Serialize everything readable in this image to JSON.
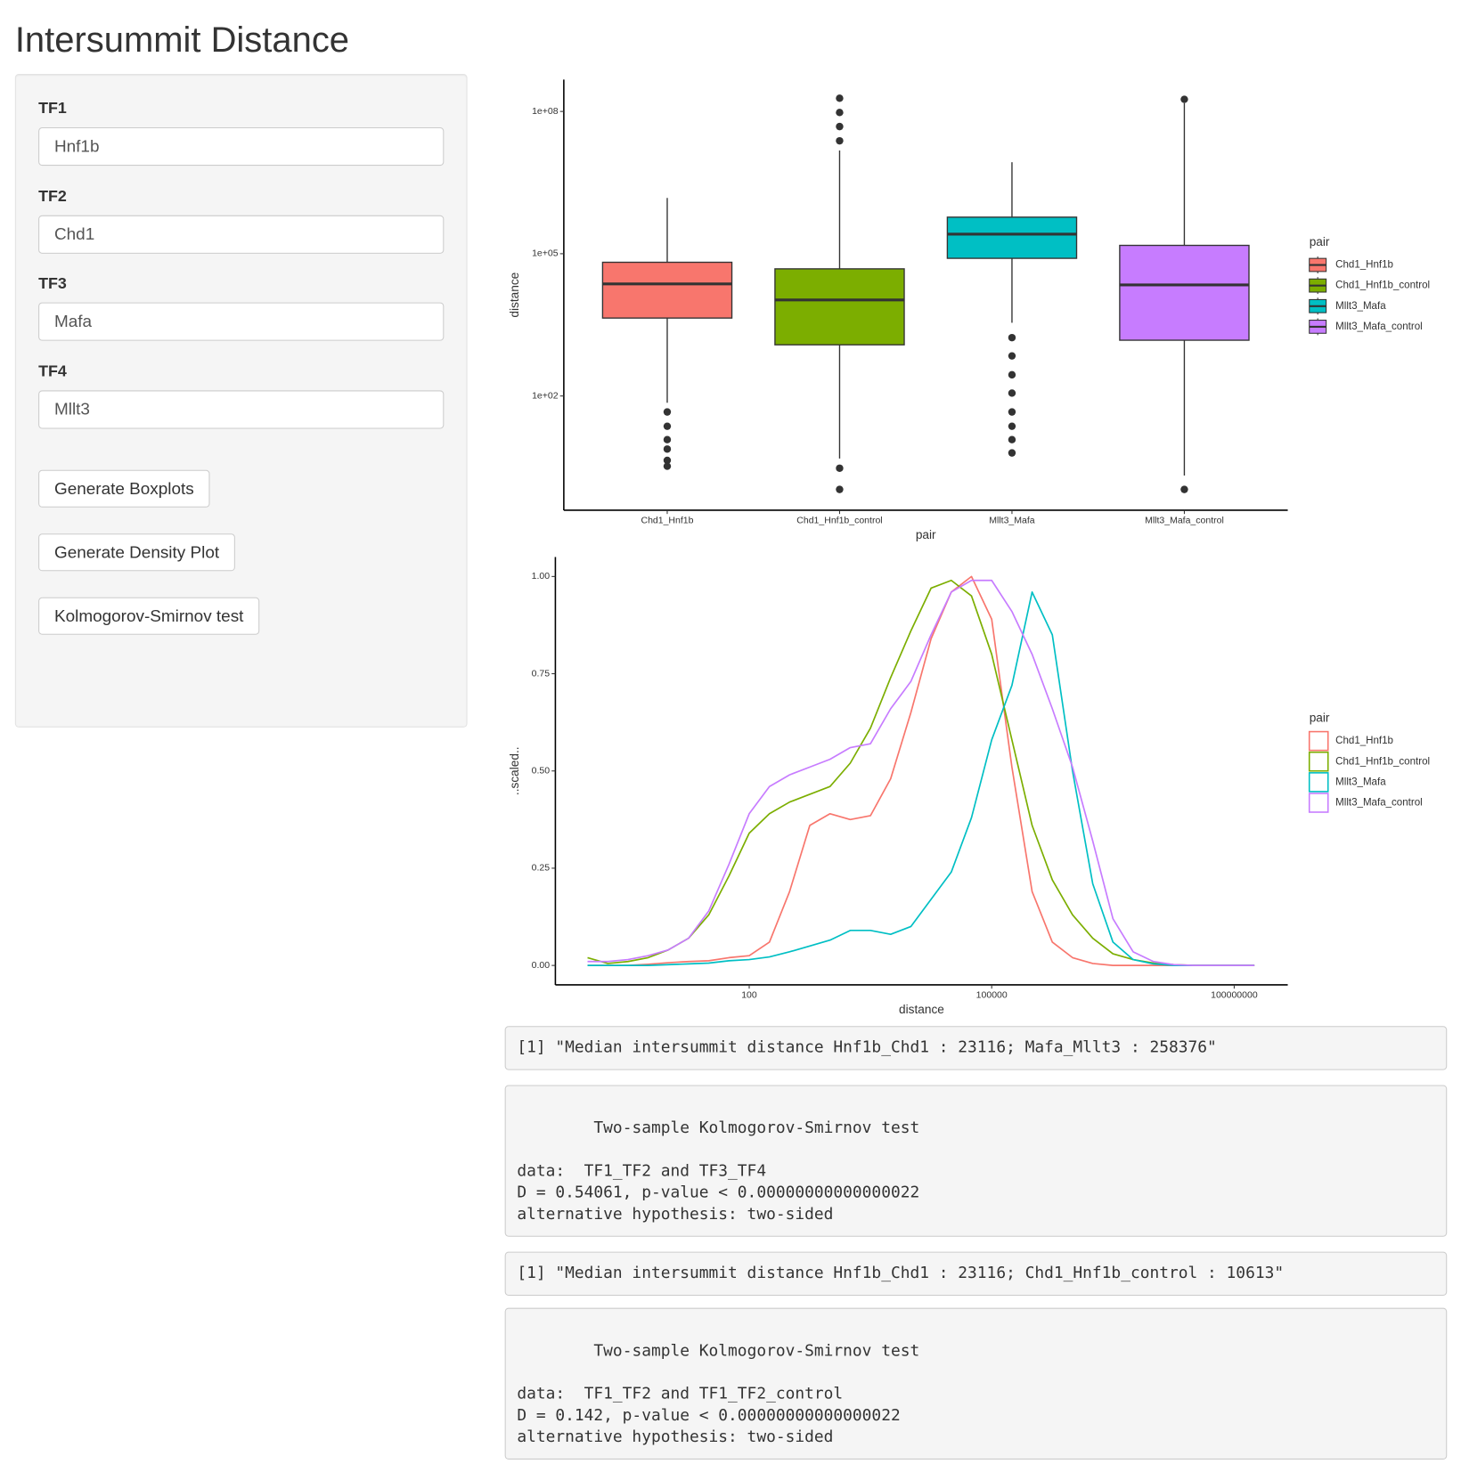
{
  "header": {
    "title": "Intersummit Distance"
  },
  "sidebar": {
    "inputs": [
      {
        "label": "TF1",
        "value": "Hnf1b"
      },
      {
        "label": "TF2",
        "value": "Chd1"
      },
      {
        "label": "TF3",
        "value": "Mafa"
      },
      {
        "label": "TF4",
        "value": "Mllt3"
      }
    ],
    "buttons": [
      "Generate Boxplots",
      "Generate Density Plot",
      "Kolmogorov-Smirnov test"
    ]
  },
  "chart_data": [
    {
      "type": "box",
      "xlabel": "pair",
      "ylabel": "distance",
      "log_y": true,
      "legend_title": "pair",
      "legend": "right",
      "categories": [
        "Chd1_Hnf1b",
        "Chd1_Hnf1b_control",
        "Mllt3_Mafa",
        "Mllt3_Mafa_control"
      ],
      "ylim": [
        0.39,
        470000000
      ],
      "yticks": [
        {
          "value": 100,
          "label": "1e+02"
        },
        {
          "value": 100000,
          "label": "1e+05"
        },
        {
          "value": 100000000,
          "label": "1e+08"
        }
      ],
      "boxes": [
        {
          "name": "Chd1_Hnf1b",
          "color": "#F8766D",
          "whisker_low": 72,
          "q1": 4400,
          "median": 23116,
          "q3": 66000,
          "whisker_high": 1500000,
          "outliers": [
            46,
            23,
            12,
            7.6,
            4.4,
            3.3
          ]
        },
        {
          "name": "Chd1_Hnf1b_control",
          "color": "#7CAE00",
          "whisker_low": 4.8,
          "q1": 1200,
          "median": 10613,
          "q3": 48000,
          "whisker_high": 15000000,
          "outliers": [
            190000000,
            95000000,
            48000000,
            24000000,
            3.0,
            1.07
          ]
        },
        {
          "name": "Mllt3_Mafa",
          "color": "#00BFC4",
          "whisker_low": 3500,
          "q1": 80000,
          "median": 258376,
          "q3": 590000,
          "whisker_high": 8500000,
          "outliers": [
            1700,
            700,
            280,
            115,
            46,
            23,
            12,
            6.3
          ]
        },
        {
          "name": "Mllt3_Mafa_control",
          "color": "#C77CFF",
          "whisker_low": 2.1,
          "q1": 1500,
          "median": 22000,
          "q3": 150000,
          "whisker_high": 150000000,
          "outliers": [
            180000000,
            1.07
          ]
        }
      ]
    },
    {
      "type": "line",
      "xlabel": "distance",
      "ylabel": "..scaled..",
      "log_x": true,
      "legend_title": "pair",
      "legend": "right",
      "xlim": [
        0.4,
        460000000
      ],
      "xticks": [
        100,
        100000,
        100000000
      ],
      "ylim": [
        -0.05,
        1.05
      ],
      "yticks": [
        {
          "value": 0,
          "label": "0.00"
        },
        {
          "value": 0.25,
          "label": "0.25"
        },
        {
          "value": 0.5,
          "label": "0.50"
        },
        {
          "value": 0.75,
          "label": "0.75"
        },
        {
          "value": 1,
          "label": "1.00"
        }
      ],
      "x": [
        1,
        1.78,
        3.16,
        5.62,
        10,
        17.8,
        31.6,
        56.2,
        100,
        178,
        316,
        562,
        1000,
        1778,
        3162,
        5623,
        10000,
        17783,
        31623,
        56234,
        100000,
        177828,
        316228,
        562341,
        1000000,
        1778279,
        3162278,
        5623413,
        10000000,
        17782794,
        31622777,
        56234133,
        100000000,
        177827941
      ],
      "series": [
        {
          "name": "Chd1_Hnf1b",
          "color": "#F8766D",
          "values": [
            0,
            0,
            0,
            0.003,
            0.007,
            0.01,
            0.012,
            0.02,
            0.025,
            0.06,
            0.19,
            0.36,
            0.39,
            0.375,
            0.385,
            0.48,
            0.65,
            0.84,
            0.96,
            1.0,
            0.89,
            0.51,
            0.19,
            0.06,
            0.02,
            0.005,
            0,
            0,
            0,
            0,
            0,
            0,
            0,
            0
          ]
        },
        {
          "name": "Chd1_Hnf1b_control",
          "color": "#7CAE00",
          "values": [
            0.02,
            0.005,
            0.01,
            0.02,
            0.04,
            0.07,
            0.13,
            0.23,
            0.34,
            0.39,
            0.42,
            0.44,
            0.46,
            0.52,
            0.61,
            0.74,
            0.86,
            0.97,
            0.99,
            0.95,
            0.8,
            0.58,
            0.36,
            0.22,
            0.13,
            0.07,
            0.03,
            0.015,
            0.006,
            0.002,
            0,
            0,
            0,
            0
          ]
        },
        {
          "name": "Mllt3_Mafa",
          "color": "#00BFC4",
          "values": [
            0,
            0,
            0,
            0,
            0.002,
            0.004,
            0.006,
            0.012,
            0.015,
            0.022,
            0.035,
            0.05,
            0.065,
            0.09,
            0.09,
            0.08,
            0.1,
            0.17,
            0.24,
            0.38,
            0.58,
            0.72,
            0.96,
            0.85,
            0.5,
            0.21,
            0.06,
            0.015,
            0.004,
            0,
            0,
            0,
            0,
            0
          ]
        },
        {
          "name": "Mllt3_Mafa_control",
          "color": "#C77CFF",
          "values": [
            0.01,
            0.01,
            0.015,
            0.025,
            0.04,
            0.07,
            0.14,
            0.26,
            0.39,
            0.46,
            0.49,
            0.51,
            0.53,
            0.56,
            0.57,
            0.66,
            0.73,
            0.85,
            0.96,
            0.99,
            0.99,
            0.91,
            0.8,
            0.66,
            0.51,
            0.32,
            0.12,
            0.035,
            0.01,
            0.002,
            0,
            0,
            0,
            0
          ]
        }
      ]
    }
  ],
  "outputs": [
    "[1] \"Median intersummit distance Hnf1b_Chd1 : 23116; Mafa_Mllt3 : 258376\"",
    "\n\tTwo-sample Kolmogorov-Smirnov test\n\ndata:  TF1_TF2 and TF3_TF4\nD = 0.54061, p-value < 0.00000000000000022\nalternative hypothesis: two-sided",
    "[1] \"Median intersummit distance Hnf1b_Chd1 : 23116; Chd1_Hnf1b_control : 10613\"",
    "\n\tTwo-sample Kolmogorov-Smirnov test\n\ndata:  TF1_TF2 and TF1_TF2_control\nD = 0.142, p-value < 0.00000000000000022\nalternative hypothesis: two-sided"
  ]
}
